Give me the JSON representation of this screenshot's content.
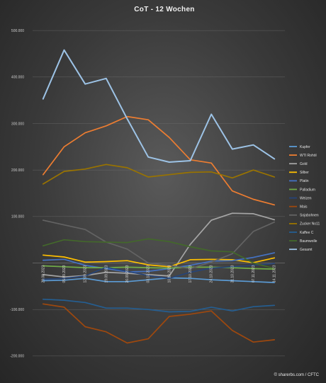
{
  "chart_data": {
    "type": "line",
    "title": "CoT - 12 Wochen",
    "xlabel": "",
    "ylabel": "",
    "ylim": [
      -220000,
      520000
    ],
    "yticks": [
      500000,
      400000,
      300000,
      200000,
      100000,
      -100000,
      -200000
    ],
    "ytick_labels": [
      "500.000",
      "400.000",
      "300.000",
      "200.000",
      "100.000",
      "-100.000",
      "-200.000"
    ],
    "categories": [
      "29.08.2023",
      "05.09.2023",
      "12.09.2023",
      "19.09.2023",
      "26.09.2023",
      "03.10.2023",
      "10.10.2023",
      "17.10.2023",
      "24.10.2023",
      "31.10.2023",
      "07.11.2023",
      "14.11.2023"
    ],
    "grid": true,
    "legend_position": "right",
    "series": [
      {
        "name": "Kupfer",
        "color": "#5b9bd5",
        "values": [
          -38000,
          -37000,
          -33000,
          -40000,
          -40000,
          -36000,
          -32000,
          -33000,
          -36000,
          -38000,
          -40000,
          -42000
        ]
      },
      {
        "name": "WTI Rohöl",
        "color": "#ed7d31",
        "values": [
          190000,
          250000,
          280000,
          295000,
          315000,
          308000,
          270000,
          222000,
          215000,
          155000,
          137000,
          125000
        ]
      },
      {
        "name": "Gold",
        "color": "#a5a5a5",
        "values": [
          -25000,
          -30000,
          -27000,
          -20000,
          -22000,
          -25000,
          -28000,
          40000,
          92000,
          107000,
          106000,
          93000
        ]
      },
      {
        "name": "Silber",
        "color": "#ffc000",
        "values": [
          17000,
          13000,
          2000,
          3000,
          5000,
          -4000,
          -8000,
          7000,
          8000,
          7000,
          1000,
          11000
        ]
      },
      {
        "name": "Platin",
        "color": "#4472c4",
        "values": [
          6000,
          8000,
          -5000,
          -12000,
          -19000,
          -18000,
          -12000,
          -5000,
          4000,
          5000,
          12000,
          22000
        ]
      },
      {
        "name": "Palladium",
        "color": "#70ad47",
        "values": [
          -6000,
          -8000,
          -10000,
          -10000,
          -9000,
          -10000,
          -11000,
          -9000,
          -9000,
          -10000,
          -12000,
          -13000
        ]
      },
      {
        "name": "Weizen",
        "color": "#264478",
        "values": [
          -35000,
          -33000,
          -28000,
          -9000,
          -18000,
          -27000,
          -33000,
          -20000,
          -11000,
          -8000,
          -5000,
          -1000
        ]
      },
      {
        "name": "Mais",
        "color": "#9e480e",
        "values": [
          -88000,
          -95000,
          -137000,
          -148000,
          -172000,
          -163000,
          -115000,
          -110000,
          -103000,
          -145000,
          -170000,
          -165000
        ]
      },
      {
        "name": "Sojabohnen",
        "color": "#636363",
        "values": [
          92000,
          82000,
          72000,
          45000,
          30000,
          0,
          -5000,
          -12000,
          2000,
          20000,
          68000,
          88000
        ]
      },
      {
        "name": "Zucker No11",
        "color": "#997300",
        "values": [
          170000,
          197000,
          202000,
          212000,
          205000,
          185000,
          190000,
          195000,
          196000,
          183000,
          200000,
          185000
        ]
      },
      {
        "name": "Kaffee C",
        "color": "#255e91",
        "values": [
          -78000,
          -80000,
          -85000,
          -97000,
          -97000,
          -100000,
          -105000,
          -104000,
          -95000,
          -103000,
          -94000,
          -91000
        ]
      },
      {
        "name": "Baumwolle",
        "color": "#43682b",
        "values": [
          37000,
          50000,
          46000,
          45000,
          44000,
          52000,
          46000,
          35000,
          26000,
          24000,
          0,
          -12000
        ]
      },
      {
        "name": "Gesamt",
        "color": "#9dc3e6",
        "values": [
          353000,
          458000,
          385000,
          397000,
          310000,
          228000,
          217000,
          220000,
          320000,
          245000,
          254000,
          224000
        ]
      }
    ],
    "annotations": [
      "© sharerbs.com / CFTC"
    ]
  }
}
